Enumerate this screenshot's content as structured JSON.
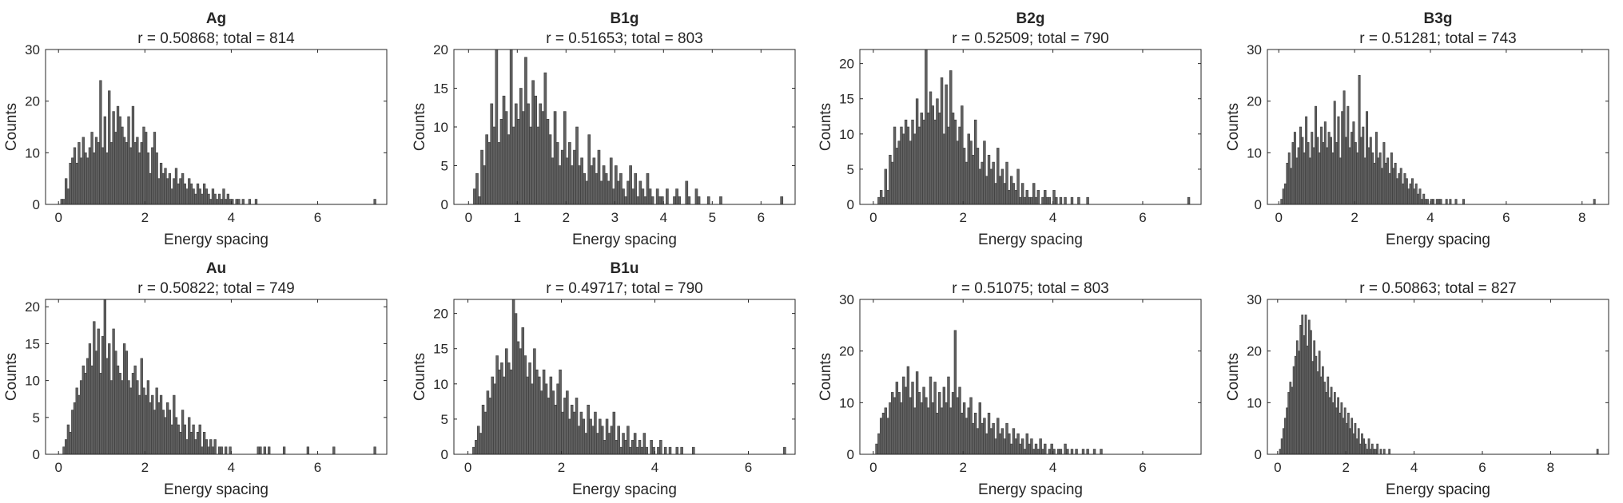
{
  "figure": {
    "bar_color": "#616161",
    "axis_color": "#262626"
  },
  "chart_data": [
    {
      "type": "bar",
      "title": "Ag",
      "subtitle": "r = 0.50868; total = 814",
      "xlabel": "Energy spacing",
      "ylabel": "Counts",
      "xlim": [
        -0.3,
        7.6
      ],
      "ylim": [
        0,
        30
      ],
      "xticks": [
        0,
        2,
        4,
        6
      ],
      "yticks": [
        0,
        10,
        20,
        30
      ],
      "bin_width": 0.05,
      "x_start": 0.05,
      "values": [
        1,
        1,
        5,
        3,
        8,
        9,
        11,
        8,
        12,
        9,
        13,
        10,
        9,
        11,
        14,
        10,
        13,
        12,
        24,
        11,
        17,
        10,
        22,
        12,
        18,
        14,
        19,
        17,
        15,
        13,
        12,
        17,
        11,
        19,
        12,
        13,
        10,
        12,
        15,
        14,
        10,
        6,
        11,
        14,
        10,
        5,
        8,
        6,
        7,
        5,
        6,
        3,
        5,
        7,
        4,
        5,
        6,
        4,
        3,
        5,
        4,
        3,
        2,
        4,
        3,
        2,
        4,
        3,
        2,
        1,
        3,
        2,
        1,
        2,
        1,
        3,
        1,
        2,
        1,
        1,
        0,
        1,
        1,
        0,
        1,
        0,
        0,
        1,
        0,
        0,
        1,
        0,
        0,
        0,
        0,
        0,
        0,
        0,
        0,
        0,
        0,
        0,
        0,
        0,
        0,
        0,
        0,
        0,
        0,
        0,
        0,
        0,
        0,
        0,
        0,
        0,
        0,
        0,
        0,
        0,
        0,
        0,
        0,
        0,
        0,
        0,
        0,
        0,
        0,
        0,
        0,
        0,
        0,
        0,
        0,
        0,
        0,
        0,
        0,
        0,
        0,
        0,
        0,
        0,
        0,
        1
      ]
    },
    {
      "type": "bar",
      "title": "B1g",
      "subtitle": "r = 0.51653; total = 803",
      "xlabel": "Energy spacing",
      "ylabel": "Counts",
      "xlim": [
        -0.3,
        6.7
      ],
      "ylim": [
        0,
        20
      ],
      "xticks": [
        0,
        1,
        2,
        3,
        4,
        5,
        6
      ],
      "yticks": [
        0,
        5,
        10,
        15,
        20
      ],
      "bin_width": 0.05,
      "x_start": 0.05,
      "values": [
        0,
        2,
        4,
        1,
        7,
        5,
        9,
        8,
        13,
        10,
        20,
        8,
        11,
        14,
        12,
        9,
        20,
        10,
        13,
        11,
        15,
        12,
        19,
        13,
        10,
        16,
        14,
        10,
        13,
        12,
        17,
        11,
        9,
        6,
        12,
        8,
        5,
        7,
        12,
        6,
        8,
        5,
        7,
        10,
        5,
        6,
        4,
        3,
        9,
        5,
        6,
        4,
        7,
        3,
        5,
        4,
        3,
        6,
        2,
        5,
        3,
        4,
        2,
        1,
        3,
        5,
        2,
        4,
        1,
        3,
        2,
        1,
        4,
        2,
        1,
        0,
        2,
        1,
        1,
        0,
        2,
        0,
        0,
        1,
        2,
        1,
        0,
        0,
        3,
        1,
        0,
        0,
        2,
        1,
        0,
        0,
        0,
        1,
        0,
        0,
        0,
        0,
        1,
        0,
        0,
        0,
        0,
        0,
        0,
        0,
        0,
        0,
        0,
        0,
        0,
        0,
        0,
        0,
        0,
        0,
        0,
        0,
        0,
        0,
        0,
        0,
        0,
        1,
        0,
        0
      ]
    },
    {
      "type": "bar",
      "title": "B2g",
      "subtitle": "r = 0.52509; total = 790",
      "xlabel": "Energy spacing",
      "ylabel": "Counts",
      "xlim": [
        -0.3,
        7.3
      ],
      "ylim": [
        0,
        22
      ],
      "xticks": [
        0,
        2,
        4,
        6
      ],
      "yticks": [
        0,
        5,
        10,
        15,
        20
      ],
      "bin_width": 0.05,
      "x_start": 0.05,
      "values": [
        0,
        1,
        2,
        1,
        5,
        2,
        7,
        6,
        11,
        8,
        9,
        11,
        10,
        12,
        11,
        9,
        12,
        10,
        15,
        11,
        13,
        12,
        22,
        13,
        16,
        14,
        12,
        15,
        13,
        18,
        10,
        17,
        11,
        19,
        13,
        12,
        9,
        11,
        14,
        8,
        6,
        10,
        9,
        7,
        12,
        8,
        5,
        6,
        9,
        4,
        7,
        5,
        6,
        3,
        8,
        4,
        5,
        3,
        6,
        2,
        4,
        3,
        2,
        5,
        1,
        3,
        1,
        2,
        1,
        1,
        3,
        1,
        2,
        0,
        1,
        2,
        1,
        1,
        0,
        2,
        1,
        0,
        1,
        0,
        1,
        0,
        0,
        1,
        0,
        0,
        1,
        0,
        0,
        0,
        1,
        0,
        0,
        0,
        0,
        0,
        0,
        0,
        0,
        0,
        0,
        0,
        0,
        0,
        0,
        0,
        0,
        0,
        0,
        0,
        0,
        0,
        0,
        0,
        0,
        0,
        0,
        0,
        0,
        0,
        0,
        0,
        0,
        0,
        0,
        0,
        0,
        0,
        0,
        0,
        0,
        0,
        0,
        0,
        0,
        1
      ]
    },
    {
      "type": "bar",
      "title": "B3g",
      "subtitle": "r = 0.51281; total = 743",
      "xlabel": "Energy spacing",
      "ylabel": "Counts",
      "xlim": [
        -0.3,
        8.7
      ],
      "ylim": [
        0,
        30
      ],
      "xticks": [
        0,
        2,
        4,
        6,
        8
      ],
      "yticks": [
        0,
        10,
        20,
        30
      ],
      "bin_width": 0.05,
      "x_start": 0.05,
      "values": [
        1,
        3,
        4,
        8,
        10,
        7,
        12,
        14,
        9,
        11,
        15,
        13,
        10,
        17,
        12,
        9,
        14,
        11,
        19,
        13,
        10,
        15,
        12,
        16,
        11,
        14,
        13,
        10,
        20,
        12,
        17,
        9,
        18,
        22,
        13,
        19,
        11,
        14,
        16,
        12,
        10,
        25,
        13,
        15,
        9,
        18,
        11,
        13,
        10,
        8,
        14,
        9,
        10,
        7,
        12,
        8,
        9,
        6,
        10,
        7,
        8,
        5,
        6,
        7,
        4,
        6,
        5,
        3,
        4,
        5,
        3,
        4,
        2,
        3,
        1,
        2,
        1,
        1,
        0,
        1,
        1,
        0,
        1,
        1,
        1,
        0,
        0,
        1,
        0,
        1,
        0,
        0,
        1,
        0,
        0,
        0,
        1,
        0,
        0,
        0,
        0,
        0,
        0,
        0,
        0,
        0,
        0,
        0,
        0,
        0,
        0,
        0,
        0,
        0,
        0,
        0,
        0,
        0,
        0,
        0,
        0,
        0,
        0,
        0,
        0,
        0,
        0,
        0,
        0,
        0,
        0,
        0,
        0,
        0,
        0,
        0,
        0,
        0,
        0,
        0,
        0,
        0,
        0,
        0,
        0,
        0,
        0,
        0,
        0,
        0,
        0,
        0,
        0,
        0,
        0,
        0,
        0,
        0,
        0,
        0,
        0,
        0,
        0,
        0,
        0,
        1
      ]
    },
    {
      "type": "bar",
      "title": "Au",
      "subtitle": "r = 0.50822; total = 749",
      "xlabel": "Energy spacing",
      "ylabel": "Counts",
      "xlim": [
        -0.3,
        7.6
      ],
      "ylim": [
        0,
        21
      ],
      "xticks": [
        0,
        2,
        4,
        6
      ],
      "yticks": [
        0,
        5,
        10,
        15,
        20
      ],
      "bin_width": 0.05,
      "x_start": 0.05,
      "values": [
        0,
        1,
        2,
        4,
        3,
        6,
        7,
        9,
        8,
        10,
        12,
        11,
        13,
        15,
        12,
        18,
        14,
        17,
        11,
        16,
        21,
        13,
        15,
        10,
        17,
        14,
        12,
        11,
        10,
        15,
        14,
        10,
        9,
        11,
        12,
        10,
        8,
        13,
        9,
        8,
        10,
        7,
        8,
        6,
        9,
        7,
        8,
        6,
        5,
        7,
        6,
        4,
        8,
        5,
        4,
        3,
        6,
        4,
        2,
        5,
        3,
        4,
        2,
        3,
        4,
        1,
        3,
        2,
        1,
        2,
        1,
        2,
        0,
        1,
        1,
        0,
        1,
        0,
        1,
        0,
        0,
        0,
        0,
        0,
        0,
        0,
        0,
        0,
        0,
        0,
        0,
        1,
        1,
        0,
        1,
        0,
        1,
        0,
        0,
        0,
        0,
        0,
        0,
        1,
        0,
        0,
        0,
        0,
        0,
        0,
        0,
        0,
        0,
        0,
        1,
        0,
        0,
        0,
        0,
        0,
        0,
        0,
        0,
        0,
        0,
        0,
        1,
        0,
        0,
        0,
        0,
        0,
        0,
        0,
        0,
        0,
        0,
        0,
        0,
        0,
        0,
        0,
        0,
        0,
        0,
        1
      ]
    },
    {
      "type": "bar",
      "title": "B1u",
      "subtitle": "r = 0.49717; total = 790",
      "xlabel": "Energy spacing",
      "ylabel": "Counts",
      "xlim": [
        -0.3,
        7.0
      ],
      "ylim": [
        0,
        22
      ],
      "xticks": [
        0,
        2,
        4,
        6
      ],
      "yticks": [
        0,
        5,
        10,
        15,
        20
      ],
      "bin_width": 0.05,
      "x_start": 0.05,
      "values": [
        0,
        1,
        2,
        4,
        3,
        7,
        6,
        9,
        8,
        11,
        10,
        14,
        12,
        13,
        11,
        15,
        13,
        12,
        22,
        20,
        16,
        15,
        18,
        14,
        11,
        13,
        10,
        15,
        12,
        11,
        9,
        12,
        10,
        8,
        11,
        9,
        7,
        10,
        12,
        6,
        8,
        9,
        5,
        7,
        6,
        8,
        4,
        6,
        5,
        3,
        7,
        5,
        4,
        6,
        3,
        5,
        4,
        2,
        5,
        3,
        4,
        6,
        2,
        4,
        1,
        3,
        2,
        4,
        1,
        2,
        3,
        1,
        2,
        1,
        3,
        1,
        0,
        2,
        1,
        0,
        1,
        2,
        0,
        1,
        0,
        1,
        0,
        0,
        1,
        0,
        1,
        0,
        0,
        0,
        0,
        1,
        0,
        0,
        0,
        0,
        0,
        0,
        0,
        0,
        0,
        0,
        0,
        0,
        0,
        0,
        0,
        0,
        0,
        0,
        0,
        0,
        0,
        0,
        0,
        0,
        0,
        0,
        0,
        0,
        0,
        0,
        0,
        0,
        0,
        0,
        0,
        0,
        0,
        0,
        1
      ]
    },
    {
      "type": "bar",
      "title": "",
      "subtitle": "r = 0.51075; total = 803",
      "xlabel": "Energy spacing",
      "ylabel": "Counts",
      "xlim": [
        -0.3,
        7.3
      ],
      "ylim": [
        0,
        30
      ],
      "xticks": [
        0,
        2,
        4,
        6
      ],
      "yticks": [
        0,
        10,
        20,
        30
      ],
      "bin_width": 0.05,
      "x_start": 0.05,
      "values": [
        2,
        4,
        7,
        8,
        9,
        7,
        10,
        12,
        11,
        14,
        12,
        10,
        15,
        13,
        17,
        11,
        14,
        9,
        16,
        12,
        10,
        13,
        11,
        9,
        15,
        10,
        14,
        8,
        12,
        9,
        13,
        10,
        15,
        9,
        12,
        24,
        11,
        13,
        8,
        10,
        7,
        9,
        11,
        6,
        8,
        5,
        10,
        6,
        7,
        4,
        8,
        5,
        6,
        3,
        7,
        4,
        5,
        3,
        6,
        4,
        2,
        5,
        3,
        4,
        2,
        3,
        1,
        4,
        2,
        3,
        1,
        2,
        1,
        3,
        1,
        2,
        0,
        1,
        2,
        1,
        0,
        1,
        1,
        0,
        2,
        1,
        0,
        1,
        0,
        1,
        0,
        0,
        1,
        0,
        1,
        0,
        0,
        1,
        0,
        0,
        1,
        0,
        0,
        0,
        0,
        0,
        0,
        0,
        0,
        0,
        0,
        0,
        0,
        0,
        0,
        0,
        0,
        0,
        0,
        0,
        0,
        0,
        0,
        0,
        0,
        0,
        0,
        0,
        0,
        0,
        0,
        0,
        0,
        0,
        0,
        0,
        0,
        0,
        0,
        0
      ]
    },
    {
      "type": "bar",
      "title": "",
      "subtitle": "r = 0.50863; total = 827",
      "xlabel": "Energy spacing",
      "ylabel": "Counts",
      "xlim": [
        -0.3,
        9.7
      ],
      "ylim": [
        0,
        30
      ],
      "xticks": [
        0,
        2,
        4,
        6,
        8
      ],
      "yticks": [
        0,
        10,
        20,
        30
      ],
      "bin_width": 0.05,
      "x_start": 0.05,
      "values": [
        1,
        3,
        5,
        7,
        9,
        12,
        14,
        13,
        17,
        19,
        22,
        20,
        25,
        27,
        23,
        27,
        21,
        26,
        24,
        18,
        22,
        19,
        16,
        20,
        15,
        17,
        14,
        12,
        15,
        11,
        13,
        10,
        12,
        9,
        11,
        8,
        10,
        7,
        9,
        6,
        8,
        5,
        7,
        4,
        6,
        3,
        5,
        2,
        4,
        3,
        2,
        1,
        3,
        1,
        2,
        1,
        1,
        2,
        0,
        1,
        0,
        1,
        0,
        0,
        1,
        0,
        0,
        0,
        0,
        0,
        0,
        0,
        0,
        0,
        0,
        0,
        0,
        0,
        0,
        0,
        0,
        0,
        0,
        0,
        0,
        0,
        0,
        0,
        0,
        0,
        0,
        0,
        0,
        0,
        0,
        0,
        0,
        0,
        0,
        0,
        0,
        0,
        0,
        0,
        0,
        0,
        0,
        0,
        0,
        0,
        0,
        0,
        0,
        0,
        0,
        0,
        0,
        0,
        0,
        0,
        0,
        0,
        0,
        0,
        0,
        0,
        0,
        0,
        0,
        0,
        0,
        0,
        0,
        0,
        0,
        0,
        0,
        0,
        0,
        0,
        0,
        0,
        0,
        0,
        0,
        0,
        0,
        0,
        0,
        0,
        0,
        0,
        0,
        0,
        0,
        0,
        0,
        0,
        0,
        0,
        0,
        0,
        0,
        0,
        0,
        0,
        0,
        0,
        0,
        0,
        0,
        0,
        0,
        0,
        0,
        0,
        0,
        0,
        0,
        0,
        0,
        0,
        0,
        0,
        0,
        0,
        1
      ]
    }
  ]
}
